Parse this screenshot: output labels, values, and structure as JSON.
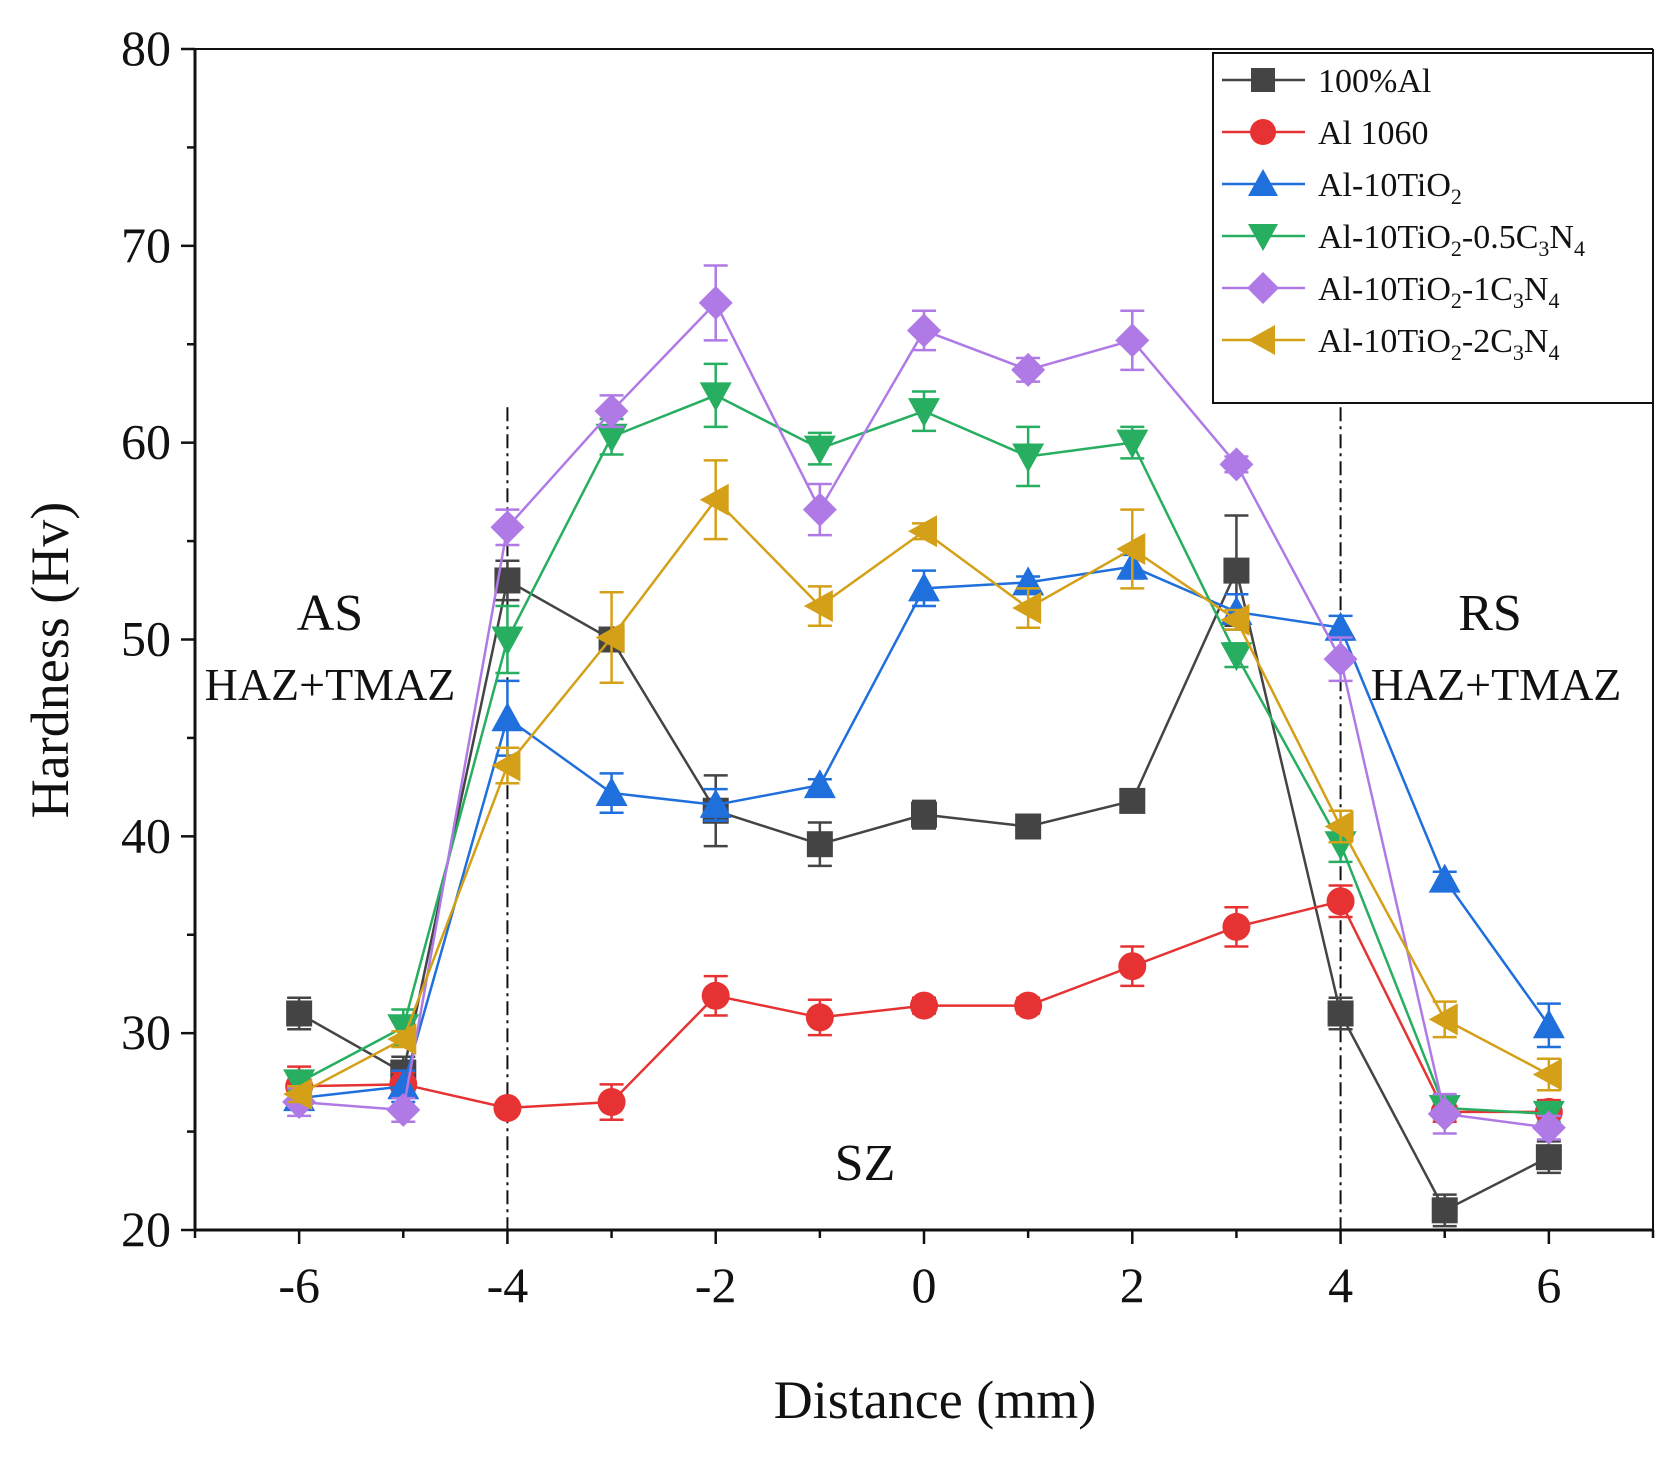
{
  "chart_data": {
    "type": "line",
    "xlabel": "Distance (mm)",
    "ylabel": "Hardness (Hv)",
    "xlim": [
      -7,
      7
    ],
    "ylim": [
      20,
      80
    ],
    "xticks": [
      -6,
      -4,
      -2,
      0,
      2,
      4,
      6
    ],
    "yticks": [
      20,
      30,
      40,
      50,
      60,
      70,
      80
    ],
    "x": [
      -6,
      -5,
      -4,
      -3,
      -2,
      -1,
      0,
      1,
      2,
      3,
      4,
      5,
      6
    ],
    "legend_position": "top-right",
    "vertical_lines": [
      -4,
      4
    ],
    "annotations": [
      {
        "id": "as",
        "text": "AS"
      },
      {
        "id": "as_zone",
        "text": "HAZ+TMAZ"
      },
      {
        "id": "rs",
        "text": "RS"
      },
      {
        "id": "rs_zone",
        "text": "HAZ+TMAZ"
      },
      {
        "id": "sz",
        "text": "SZ"
      }
    ],
    "series": [
      {
        "key": "s1",
        "name": "100%Al",
        "color": "#444444",
        "marker": "square",
        "values": [
          31.0,
          28.0,
          53.0,
          50.0,
          41.3,
          39.6,
          41.1,
          40.5,
          41.8,
          53.5,
          31.0,
          21.0,
          23.7
        ],
        "errors": [
          0.8,
          0.8,
          1.0,
          0.5,
          1.8,
          1.1,
          0.7,
          0.4,
          0.4,
          2.8,
          0.8,
          0.8,
          0.8
        ]
      },
      {
        "key": "s2",
        "name": "Al 1060",
        "color": "#e63232",
        "marker": "circle",
        "values": [
          27.3,
          27.4,
          26.2,
          26.5,
          31.9,
          30.8,
          31.4,
          31.4,
          33.4,
          35.4,
          36.7,
          26.0,
          26.0
        ],
        "errors": [
          1.0,
          0.6,
          0.3,
          0.9,
          1.0,
          0.9,
          0.4,
          0.4,
          1.0,
          1.0,
          0.8,
          0.5,
          0.6
        ]
      },
      {
        "key": "s3",
        "name": "Al-10TiO",
        "name_sub": "2",
        "name_rest": "",
        "color": "#1f6fdc",
        "marker": "triangle-up",
        "values": [
          26.7,
          27.3,
          46.0,
          42.2,
          41.6,
          42.6,
          52.6,
          52.9,
          53.7,
          51.4,
          50.6,
          37.8,
          30.4
        ],
        "errors": [
          0.4,
          0.8,
          1.9,
          1.0,
          0.8,
          0.3,
          0.9,
          0.3,
          0.6,
          0.9,
          0.6,
          0.4,
          1.1
        ]
      },
      {
        "key": "s4",
        "name": "Al-10TiO",
        "name_sub": "2",
        "name_rest": "-0.5C",
        "name_sub2": "3",
        "name_rest2": "N",
        "name_sub3": "4",
        "color": "#27ae60",
        "marker": "triangle-down",
        "values": [
          27.5,
          30.3,
          50.0,
          60.3,
          62.4,
          59.7,
          61.6,
          59.3,
          60.0,
          49.2,
          39.6,
          26.2,
          25.9
        ],
        "errors": [
          0.4,
          0.9,
          1.7,
          0.9,
          1.6,
          0.8,
          1.0,
          1.5,
          0.8,
          0.6,
          0.9,
          0.5,
          0.4
        ]
      },
      {
        "key": "s5",
        "name": "Al-10TiO",
        "name_sub": "2",
        "name_rest": "-1C",
        "name_sub2": "3",
        "name_rest2": "N",
        "name_sub3": "4",
        "color": "#b07ae6",
        "marker": "diamond",
        "values": [
          26.5,
          26.1,
          55.7,
          61.6,
          67.1,
          56.6,
          65.7,
          63.7,
          65.2,
          58.9,
          49.0,
          25.9,
          25.2
        ],
        "errors": [
          0.7,
          0.6,
          0.9,
          0.8,
          1.9,
          1.3,
          1.0,
          0.6,
          1.5,
          0.4,
          1.1,
          1.0,
          0.6
        ]
      },
      {
        "key": "s6",
        "name": "Al-10TiO",
        "name_sub": "2",
        "name_rest": "-2C",
        "name_sub2": "3",
        "name_rest2": "N",
        "name_sub3": "4",
        "color": "#d4a017",
        "marker": "triangle-left",
        "values": [
          26.9,
          29.7,
          43.6,
          50.1,
          57.1,
          51.7,
          55.5,
          51.6,
          54.6,
          51.0,
          40.5,
          30.7,
          27.9
        ],
        "errors": [
          0.4,
          0.4,
          0.9,
          2.3,
          2.0,
          1.0,
          0.4,
          1.0,
          2.0,
          0.5,
          0.8,
          0.9,
          0.8
        ]
      }
    ]
  }
}
